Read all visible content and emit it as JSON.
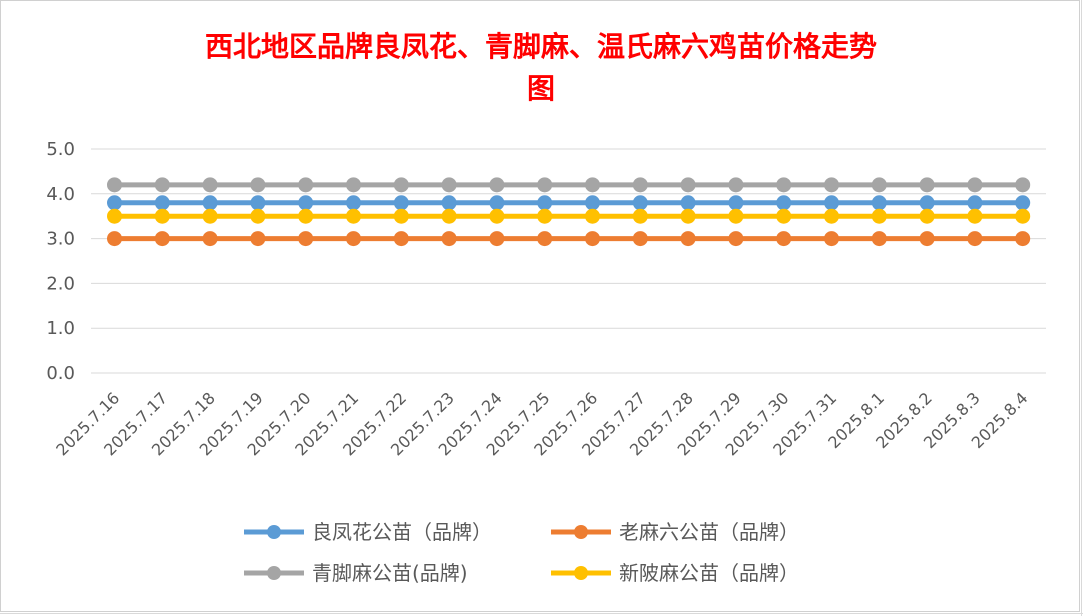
{
  "chart_data": {
    "type": "line",
    "title_lines": [
      "西北地区品牌良凤花、青脚麻、温氏麻六鸡苗价格走势",
      "图"
    ],
    "categories": [
      "2025.7.16",
      "2025.7.17",
      "2025.7.18",
      "2025.7.19",
      "2025.7.20",
      "2025.7.21",
      "2025.7.22",
      "2025.7.23",
      "2025.7.24",
      "2025.7.25",
      "2025.7.26",
      "2025.7.27",
      "2025.7.28",
      "2025.7.29",
      "2025.7.30",
      "2025.7.31",
      "2025.8.1",
      "2025.8.2",
      "2025.8.3",
      "2025.8.4"
    ],
    "ylim": [
      0,
      5
    ],
    "yticks": [
      "0.0",
      "1.0",
      "2.0",
      "3.0",
      "4.0",
      "5.0"
    ],
    "grid": true,
    "legend_position": "bottom",
    "series": [
      {
        "name": "良凤花公苗（品牌）",
        "color": "#5b9bd5",
        "values": [
          3.8,
          3.8,
          3.8,
          3.8,
          3.8,
          3.8,
          3.8,
          3.8,
          3.8,
          3.8,
          3.8,
          3.8,
          3.8,
          3.8,
          3.8,
          3.8,
          3.8,
          3.8,
          3.8,
          3.8
        ]
      },
      {
        "name": "老麻六公苗（品牌）",
        "color": "#ed7d31",
        "values": [
          3.0,
          3.0,
          3.0,
          3.0,
          3.0,
          3.0,
          3.0,
          3.0,
          3.0,
          3.0,
          3.0,
          3.0,
          3.0,
          3.0,
          3.0,
          3.0,
          3.0,
          3.0,
          3.0,
          3.0
        ]
      },
      {
        "name": "青脚麻公苗(品牌)",
        "color": "#a5a5a5",
        "values": [
          4.2,
          4.2,
          4.2,
          4.2,
          4.2,
          4.2,
          4.2,
          4.2,
          4.2,
          4.2,
          4.2,
          4.2,
          4.2,
          4.2,
          4.2,
          4.2,
          4.2,
          4.2,
          4.2,
          4.2
        ]
      },
      {
        "name": "新陂麻公苗（品牌）",
        "color": "#ffc000",
        "values": [
          3.5,
          3.5,
          3.5,
          3.5,
          3.5,
          3.5,
          3.5,
          3.5,
          3.5,
          3.5,
          3.5,
          3.5,
          3.5,
          3.5,
          3.5,
          3.5,
          3.5,
          3.5,
          3.5,
          3.5
        ]
      }
    ]
  }
}
